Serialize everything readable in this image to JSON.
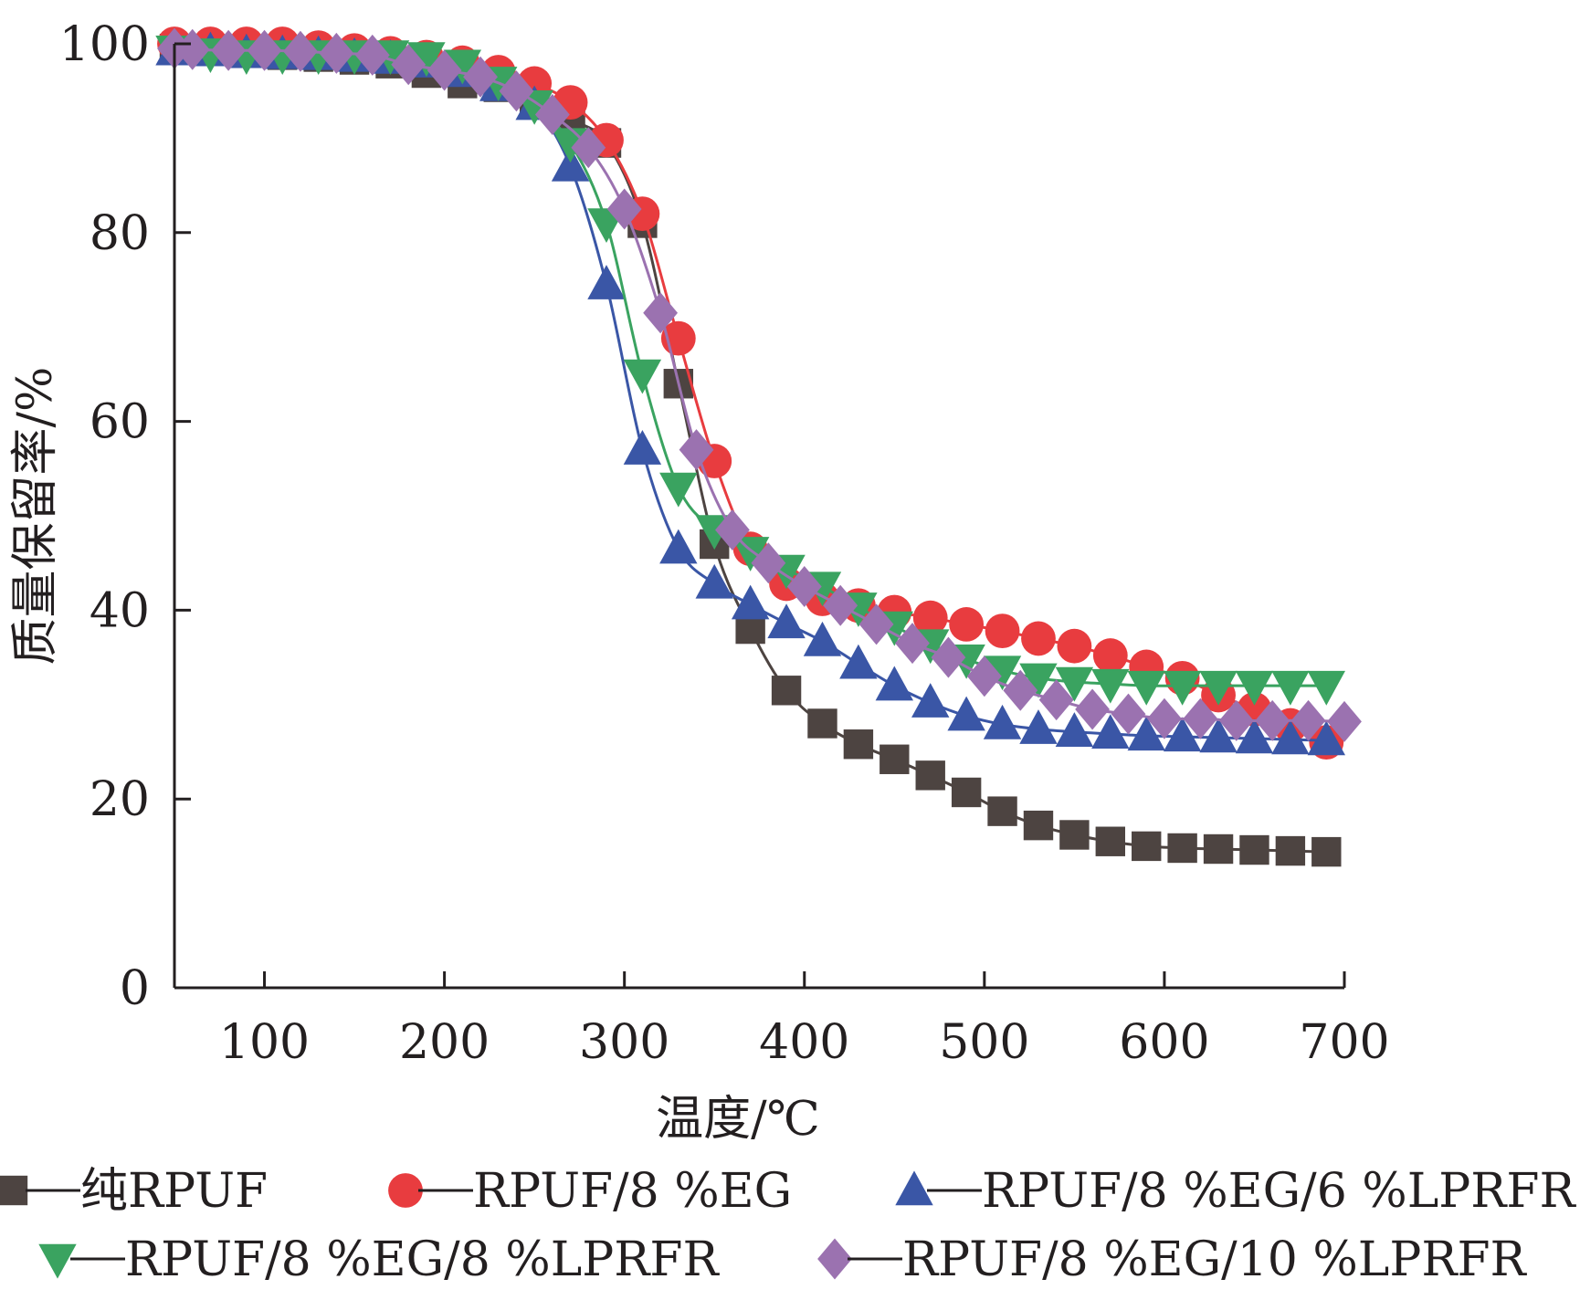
{
  "chart_data": {
    "type": "line",
    "xlabel": "温度/℃",
    "ylabel": "质量保留率/%",
    "xlim": [
      50,
      700
    ],
    "ylim": [
      0,
      100
    ],
    "xticks": [
      "100",
      "200",
      "300",
      "400",
      "500",
      "600",
      "700"
    ],
    "yticks": [
      "0",
      "20",
      "40",
      "60",
      "80",
      "100"
    ],
    "grid": false,
    "legend_position": "bottom",
    "series": [
      {
        "name": "纯RPUF",
        "color": "#4d4441",
        "marker": "square",
        "x": [
          50,
          70,
          90,
          110,
          130,
          150,
          170,
          190,
          210,
          230,
          250,
          270,
          290,
          310,
          330,
          350,
          370,
          390,
          410,
          430,
          450,
          470,
          490,
          510,
          530,
          550,
          570,
          590,
          610,
          630,
          650,
          670,
          690
        ],
        "y": [
          99.5,
          99.3,
          99.0,
          98.8,
          98.6,
          98.3,
          97.9,
          96.9,
          95.8,
          95.4,
          94.0,
          92.0,
          89.5,
          81.0,
          64.0,
          47.0,
          38.0,
          31.5,
          28.0,
          25.8,
          24.2,
          22.5,
          20.7,
          18.7,
          17.2,
          16.2,
          15.5,
          15.0,
          14.8,
          14.7,
          14.6,
          14.5,
          14.4
        ]
      },
      {
        "name": "RPUF/8 %EG",
        "color": "#e83c3f",
        "marker": "circle",
        "x": [
          50,
          70,
          90,
          110,
          130,
          150,
          170,
          190,
          210,
          230,
          250,
          270,
          290,
          310,
          330,
          350,
          370,
          390,
          410,
          430,
          450,
          470,
          490,
          510,
          530,
          550,
          570,
          590,
          610,
          630,
          650,
          670,
          690
        ],
        "y": [
          100.0,
          100.0,
          100.0,
          100.0,
          99.6,
          99.3,
          99.0,
          98.6,
          98.0,
          97.0,
          95.8,
          93.8,
          89.8,
          82.0,
          68.8,
          55.8,
          46.5,
          42.8,
          41.2,
          40.5,
          39.8,
          39.2,
          38.5,
          37.8,
          37.0,
          36.2,
          35.2,
          34.0,
          32.8,
          31.0,
          29.5,
          27.8,
          26.0
        ]
      },
      {
        "name": "RPUF/8 %EG/6 %LPRFR",
        "color": "#3a56a6",
        "marker": "triangle-up",
        "x": [
          50,
          70,
          90,
          110,
          130,
          150,
          170,
          190,
          210,
          230,
          250,
          270,
          290,
          310,
          330,
          350,
          370,
          390,
          410,
          430,
          450,
          470,
          490,
          510,
          530,
          550,
          570,
          590,
          610,
          630,
          650,
          670,
          690
        ],
        "y": [
          99.3,
          99.2,
          99.0,
          98.9,
          98.8,
          98.6,
          98.4,
          98.0,
          97.0,
          95.5,
          93.5,
          87.0,
          74.5,
          57.0,
          46.5,
          42.8,
          40.6,
          38.6,
          36.7,
          34.3,
          32.0,
          30.2,
          28.8,
          27.9,
          27.4,
          27.1,
          26.9,
          26.7,
          26.6,
          26.5,
          26.4,
          26.3,
          26.2
        ]
      },
      {
        "name": "RPUF/8 %EG/8 %LPRFR",
        "color": "#3aa360",
        "marker": "triangle-down",
        "x": [
          50,
          70,
          90,
          110,
          130,
          150,
          170,
          190,
          210,
          230,
          250,
          270,
          290,
          310,
          330,
          350,
          370,
          390,
          410,
          430,
          450,
          470,
          490,
          510,
          530,
          550,
          570,
          590,
          610,
          630,
          650,
          670,
          690
        ],
        "y": [
          99.3,
          99.0,
          98.8,
          98.8,
          98.8,
          98.8,
          98.8,
          98.6,
          97.8,
          96.0,
          93.5,
          89.5,
          81.0,
          65.0,
          53.0,
          48.5,
          46.2,
          44.3,
          42.5,
          40.3,
          38.3,
          36.4,
          34.8,
          33.6,
          32.8,
          32.4,
          32.2,
          32.0,
          32.0,
          32.0,
          32.0,
          32.0,
          32.0
        ]
      },
      {
        "name": "RPUF/8 %EG/10 %LPRFR",
        "color": "#9b72b0",
        "marker": "diamond",
        "x": [
          50,
          60,
          80,
          100,
          120,
          140,
          160,
          180,
          200,
          220,
          240,
          260,
          280,
          300,
          320,
          340,
          360,
          380,
          400,
          420,
          440,
          460,
          480,
          500,
          520,
          540,
          560,
          580,
          600,
          620,
          640,
          660,
          680,
          700
        ],
        "y": [
          99.5,
          99.4,
          99.3,
          99.3,
          99.2,
          99.0,
          98.8,
          97.8,
          97.2,
          96.5,
          95.0,
          92.5,
          89.0,
          82.5,
          71.5,
          57.0,
          48.5,
          45.0,
          42.5,
          40.5,
          38.5,
          36.5,
          35.0,
          33.0,
          31.5,
          30.5,
          29.5,
          29.0,
          28.5,
          28.5,
          28.3,
          28.3,
          28.3,
          28.2
        ]
      }
    ]
  }
}
